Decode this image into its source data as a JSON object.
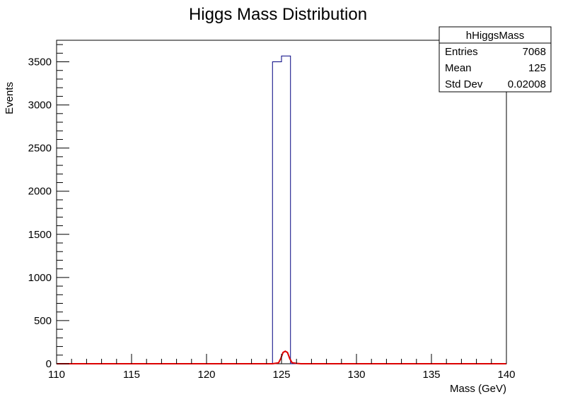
{
  "chart_data": {
    "type": "histogram",
    "title": "Higgs Mass Distribution",
    "xlabel": "Mass (GeV)",
    "ylabel": "Events",
    "xlim": [
      110,
      140
    ],
    "ylim": [
      0,
      3750
    ],
    "x_ticks": [
      110,
      115,
      120,
      125,
      130,
      135,
      140
    ],
    "y_ticks": [
      0,
      500,
      1000,
      1500,
      2000,
      2500,
      3000,
      3500
    ],
    "x_tick_labels": [
      "110",
      "115",
      "120",
      "125",
      "130",
      "135",
      "140"
    ],
    "y_tick_labels": [
      "0",
      "500",
      "1000",
      "1500",
      "2000",
      "2500",
      "3000",
      "3500"
    ],
    "grid": false,
    "histogram": {
      "name": "hHiggsMass",
      "color": "#000080",
      "bins": [
        {
          "low": 124.4,
          "high": 125.0,
          "count": 3500
        },
        {
          "low": 125.0,
          "high": 125.6,
          "count": 3568
        }
      ]
    },
    "fit_curve": {
      "color": "#dd0000",
      "points": [
        [
          110,
          0
        ],
        [
          124.4,
          0
        ],
        [
          124.8,
          10
        ],
        [
          124.95,
          60
        ],
        [
          125.1,
          130
        ],
        [
          125.25,
          145
        ],
        [
          125.4,
          130
        ],
        [
          125.55,
          60
        ],
        [
          125.7,
          12
        ],
        [
          126.0,
          4
        ],
        [
          126.3,
          0
        ],
        [
          140,
          0
        ]
      ]
    },
    "stats_box": {
      "name": "hHiggsMass",
      "rows": [
        {
          "label": "Entries",
          "value": "7068"
        },
        {
          "label": "Mean",
          "value": "125"
        },
        {
          "label": "Std Dev",
          "value": "0.02008"
        }
      ]
    }
  }
}
